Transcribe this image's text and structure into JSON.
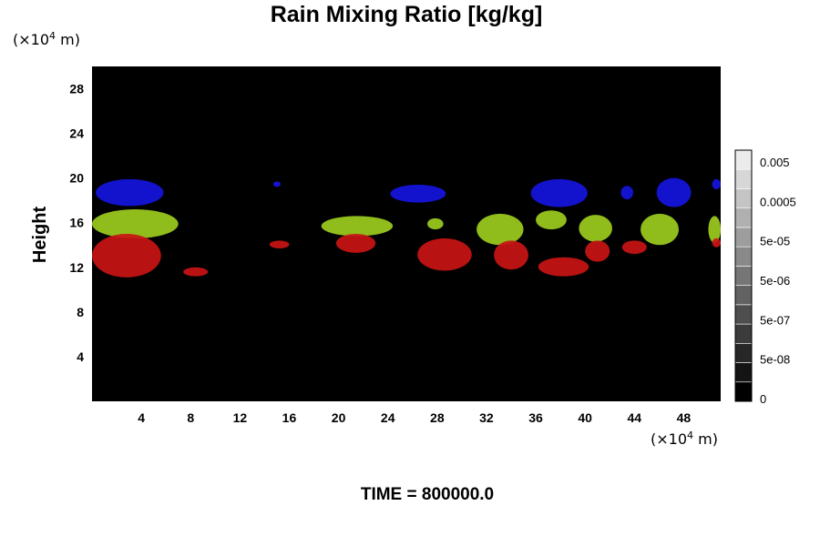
{
  "chart_data": {
    "type": "heatmap",
    "title": "Rain Mixing Ratio [kg/kg]",
    "xlabel": "",
    "ylabel": "Height",
    "x_unit": {
      "base": "(×10",
      "exp": "4",
      "tail": " m)"
    },
    "y_unit": {
      "base": "(×10",
      "exp": "4",
      "tail": " m)"
    },
    "xlim": [
      0,
      51
    ],
    "ylim": [
      0,
      30
    ],
    "x_ticks": [
      4,
      8,
      12,
      16,
      20,
      24,
      28,
      32,
      36,
      40,
      44,
      48
    ],
    "y_ticks": [
      4,
      8,
      12,
      16,
      20,
      24,
      28
    ],
    "background_color": "#000000",
    "colorbar": {
      "labels": [
        "0.005",
        "0.0005",
        "5e-05",
        "5e-06",
        "5e-07",
        "5e-08",
        "0"
      ],
      "levels": 13
    },
    "footer": "TIME = 800000.0",
    "series": [
      {
        "color": "#1515e0",
        "blobs": [
          {
            "x": [
              0.3,
              5.8
            ],
            "y": [
              17.5,
              19.9
            ]
          },
          {
            "x": [
              14.7,
              15.3
            ],
            "y": [
              19.2,
              19.7
            ]
          },
          {
            "x": [
              24.2,
              28.7
            ],
            "y": [
              17.8,
              19.4
            ]
          },
          {
            "x": [
              35.6,
              40.2
            ],
            "y": [
              17.4,
              19.9
            ]
          },
          {
            "x": [
              42.9,
              43.9
            ],
            "y": [
              18.1,
              19.3
            ]
          },
          {
            "x": [
              45.8,
              48.6
            ],
            "y": [
              17.4,
              20.0
            ]
          },
          {
            "x": [
              50.3,
              51.0
            ],
            "y": [
              19.0,
              19.9
            ]
          }
        ]
      },
      {
        "color": "#9ccc1e",
        "blobs": [
          {
            "x": [
              0.0,
              7.0
            ],
            "y": [
              14.6,
              17.2
            ]
          },
          {
            "x": [
              18.6,
              24.4
            ],
            "y": [
              14.8,
              16.6
            ]
          },
          {
            "x": [
              27.2,
              28.5
            ],
            "y": [
              15.4,
              16.4
            ]
          },
          {
            "x": [
              31.2,
              35.0
            ],
            "y": [
              14.0,
              16.8
            ]
          },
          {
            "x": [
              36.0,
              38.5
            ],
            "y": [
              15.4,
              17.1
            ]
          },
          {
            "x": [
              39.5,
              42.2
            ],
            "y": [
              14.3,
              16.7
            ]
          },
          {
            "x": [
              44.5,
              47.6
            ],
            "y": [
              14.0,
              16.8
            ]
          },
          {
            "x": [
              50.0,
              51.0
            ],
            "y": [
              14.2,
              16.6
            ]
          }
        ]
      },
      {
        "color": "#c81414",
        "blobs": [
          {
            "x": [
              0.0,
              5.6
            ],
            "y": [
              11.1,
              15.0
            ]
          },
          {
            "x": [
              7.4,
              9.4
            ],
            "y": [
              11.2,
              12.0
            ]
          },
          {
            "x": [
              14.4,
              16.0
            ],
            "y": [
              13.7,
              14.4
            ]
          },
          {
            "x": [
              19.8,
              23.0
            ],
            "y": [
              13.3,
              15.0
            ]
          },
          {
            "x": [
              26.4,
              30.8
            ],
            "y": [
              11.7,
              14.6
            ]
          },
          {
            "x": [
              32.6,
              35.4
            ],
            "y": [
              11.8,
              14.4
            ]
          },
          {
            "x": [
              36.2,
              40.3
            ],
            "y": [
              11.2,
              12.9
            ]
          },
          {
            "x": [
              40.0,
              42.0
            ],
            "y": [
              12.5,
              14.4
            ]
          },
          {
            "x": [
              43.0,
              45.0
            ],
            "y": [
              13.2,
              14.4
            ]
          },
          {
            "x": [
              50.3,
              51.0
            ],
            "y": [
              13.8,
              14.6
            ]
          }
        ]
      }
    ]
  }
}
